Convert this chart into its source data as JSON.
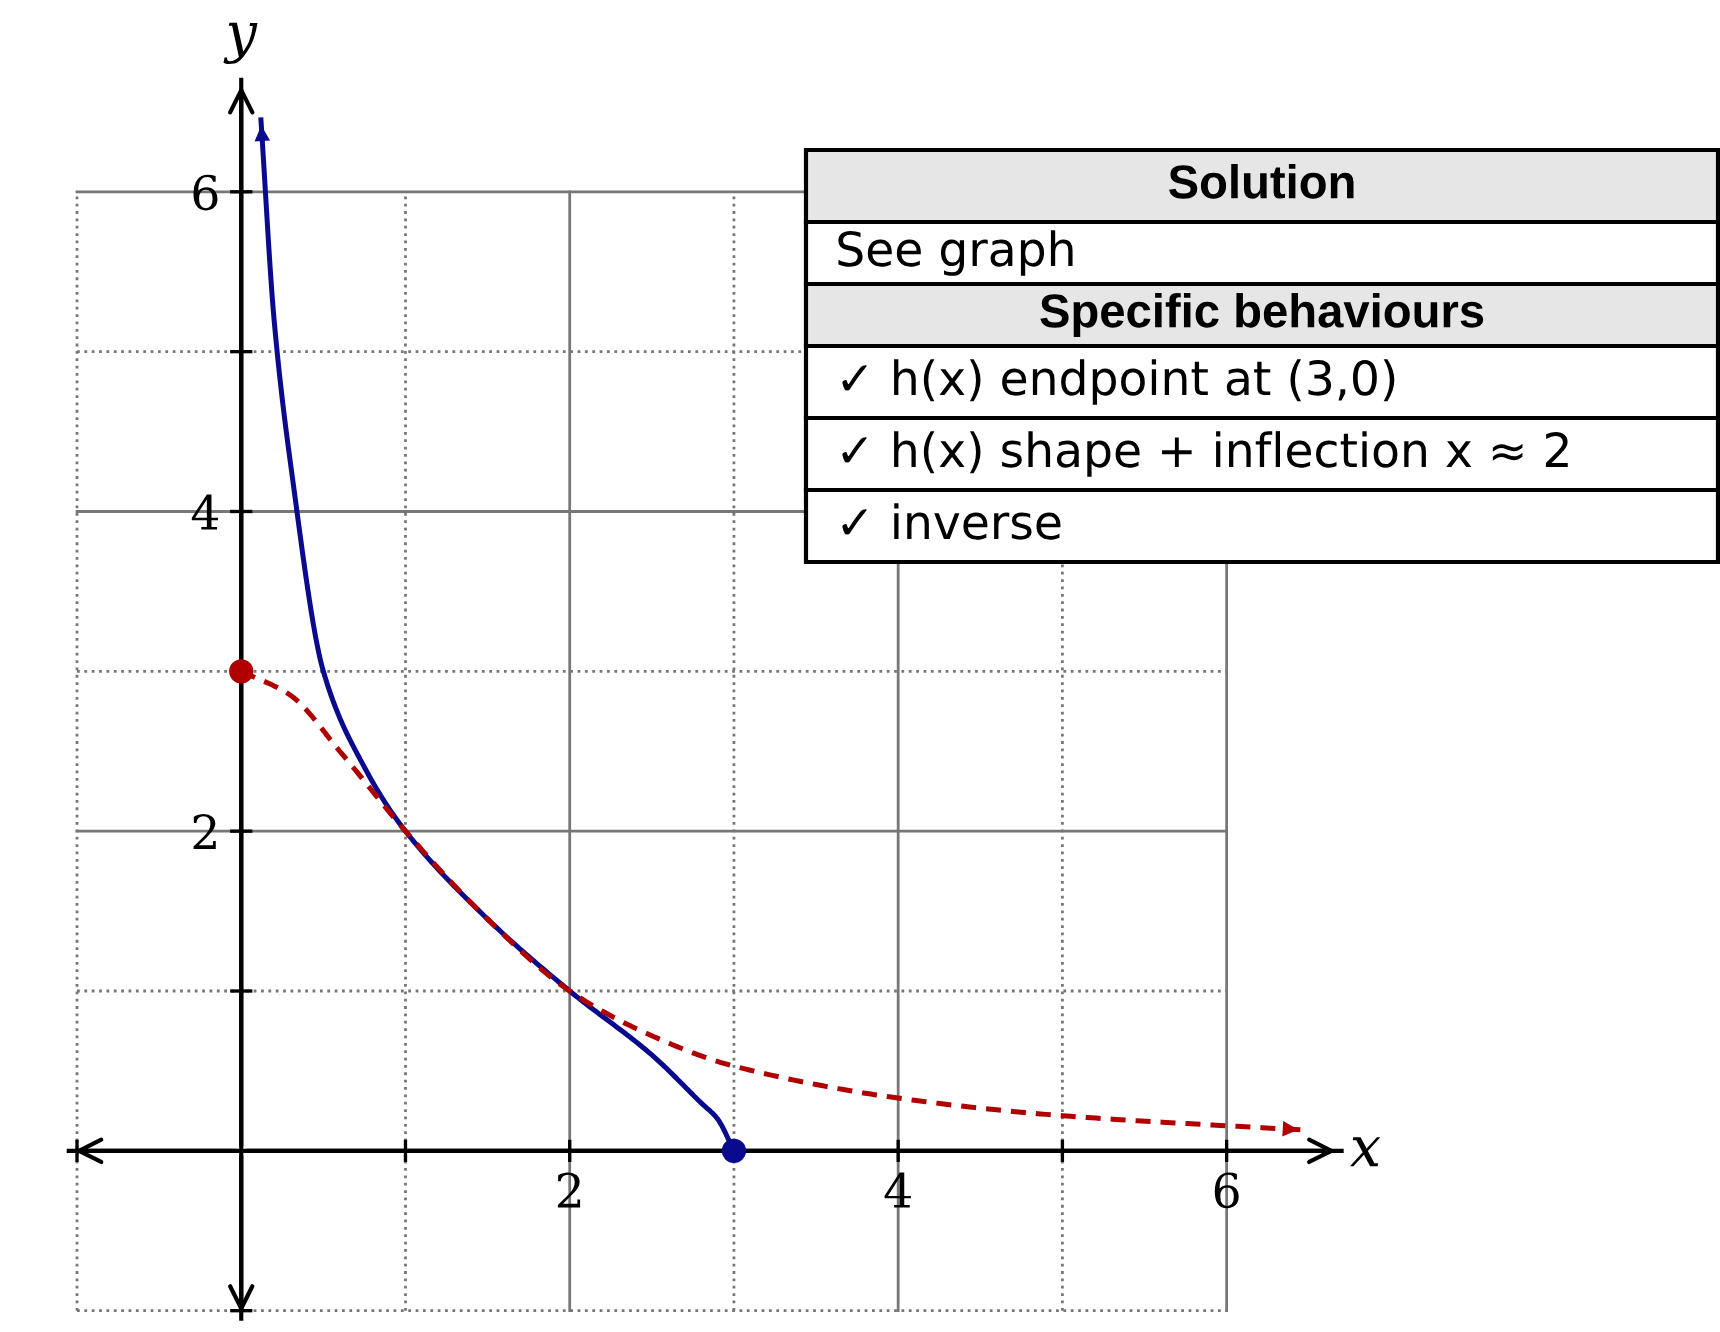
{
  "chart_data": {
    "type": "line",
    "xlabel": "x",
    "ylabel": "y",
    "series": [
      {
        "color": "#0a0a8c",
        "line_style": "solid",
        "x": [
          3,
          2.9,
          2.8,
          2.5,
          2,
          1.5,
          1,
          0.75,
          0.5,
          0.3,
          0.2,
          0.12
        ],
        "values": [
          0,
          0.2,
          0.3,
          0.6,
          1,
          1.45,
          2,
          2.4,
          3.0,
          4.3,
          5.2,
          6.45
        ]
      },
      {
        "color": "#b00000",
        "line_style": "dashed",
        "x": [
          0,
          0.3,
          0.6,
          1,
          1.45,
          2,
          2.5,
          3,
          4,
          5,
          6.47
        ],
        "values": [
          3,
          2.85,
          2.5,
          2,
          1.5,
          1,
          0.72,
          0.53,
          0.33,
          0.22,
          0.13
        ]
      },
      {
        "type": "scatter",
        "color": "#0a0a8c",
        "marker": "circle",
        "x": [
          3
        ],
        "values": [
          0
        ]
      },
      {
        "type": "scatter",
        "color": "#b00000",
        "marker": "circle",
        "x": [
          0
        ],
        "values": [
          3
        ]
      }
    ],
    "xlim": [
      -1.05,
      6.7
    ],
    "ylim": [
      -1.05,
      6.7
    ],
    "xticks": [
      {
        "value": -1,
        "label": null
      },
      {
        "value": 1,
        "label": null
      },
      2,
      {
        "value": 3,
        "label": null
      },
      4,
      {
        "value": 5,
        "label": null
      },
      6
    ],
    "yticks": [
      {
        "value": -1,
        "label": null
      },
      {
        "value": 1,
        "label": null
      },
      2,
      {
        "value": 3,
        "label": null
      },
      4,
      {
        "value": 5,
        "label": null
      },
      6
    ],
    "grid": true,
    "annotations": [
      "Solution",
      "See graph",
      "Specific behaviours",
      "✓ h(x) endpoint at (3,0)",
      "✓ h(x) shape + inflection x ≈ 2",
      "✓ inverse"
    ]
  }
}
